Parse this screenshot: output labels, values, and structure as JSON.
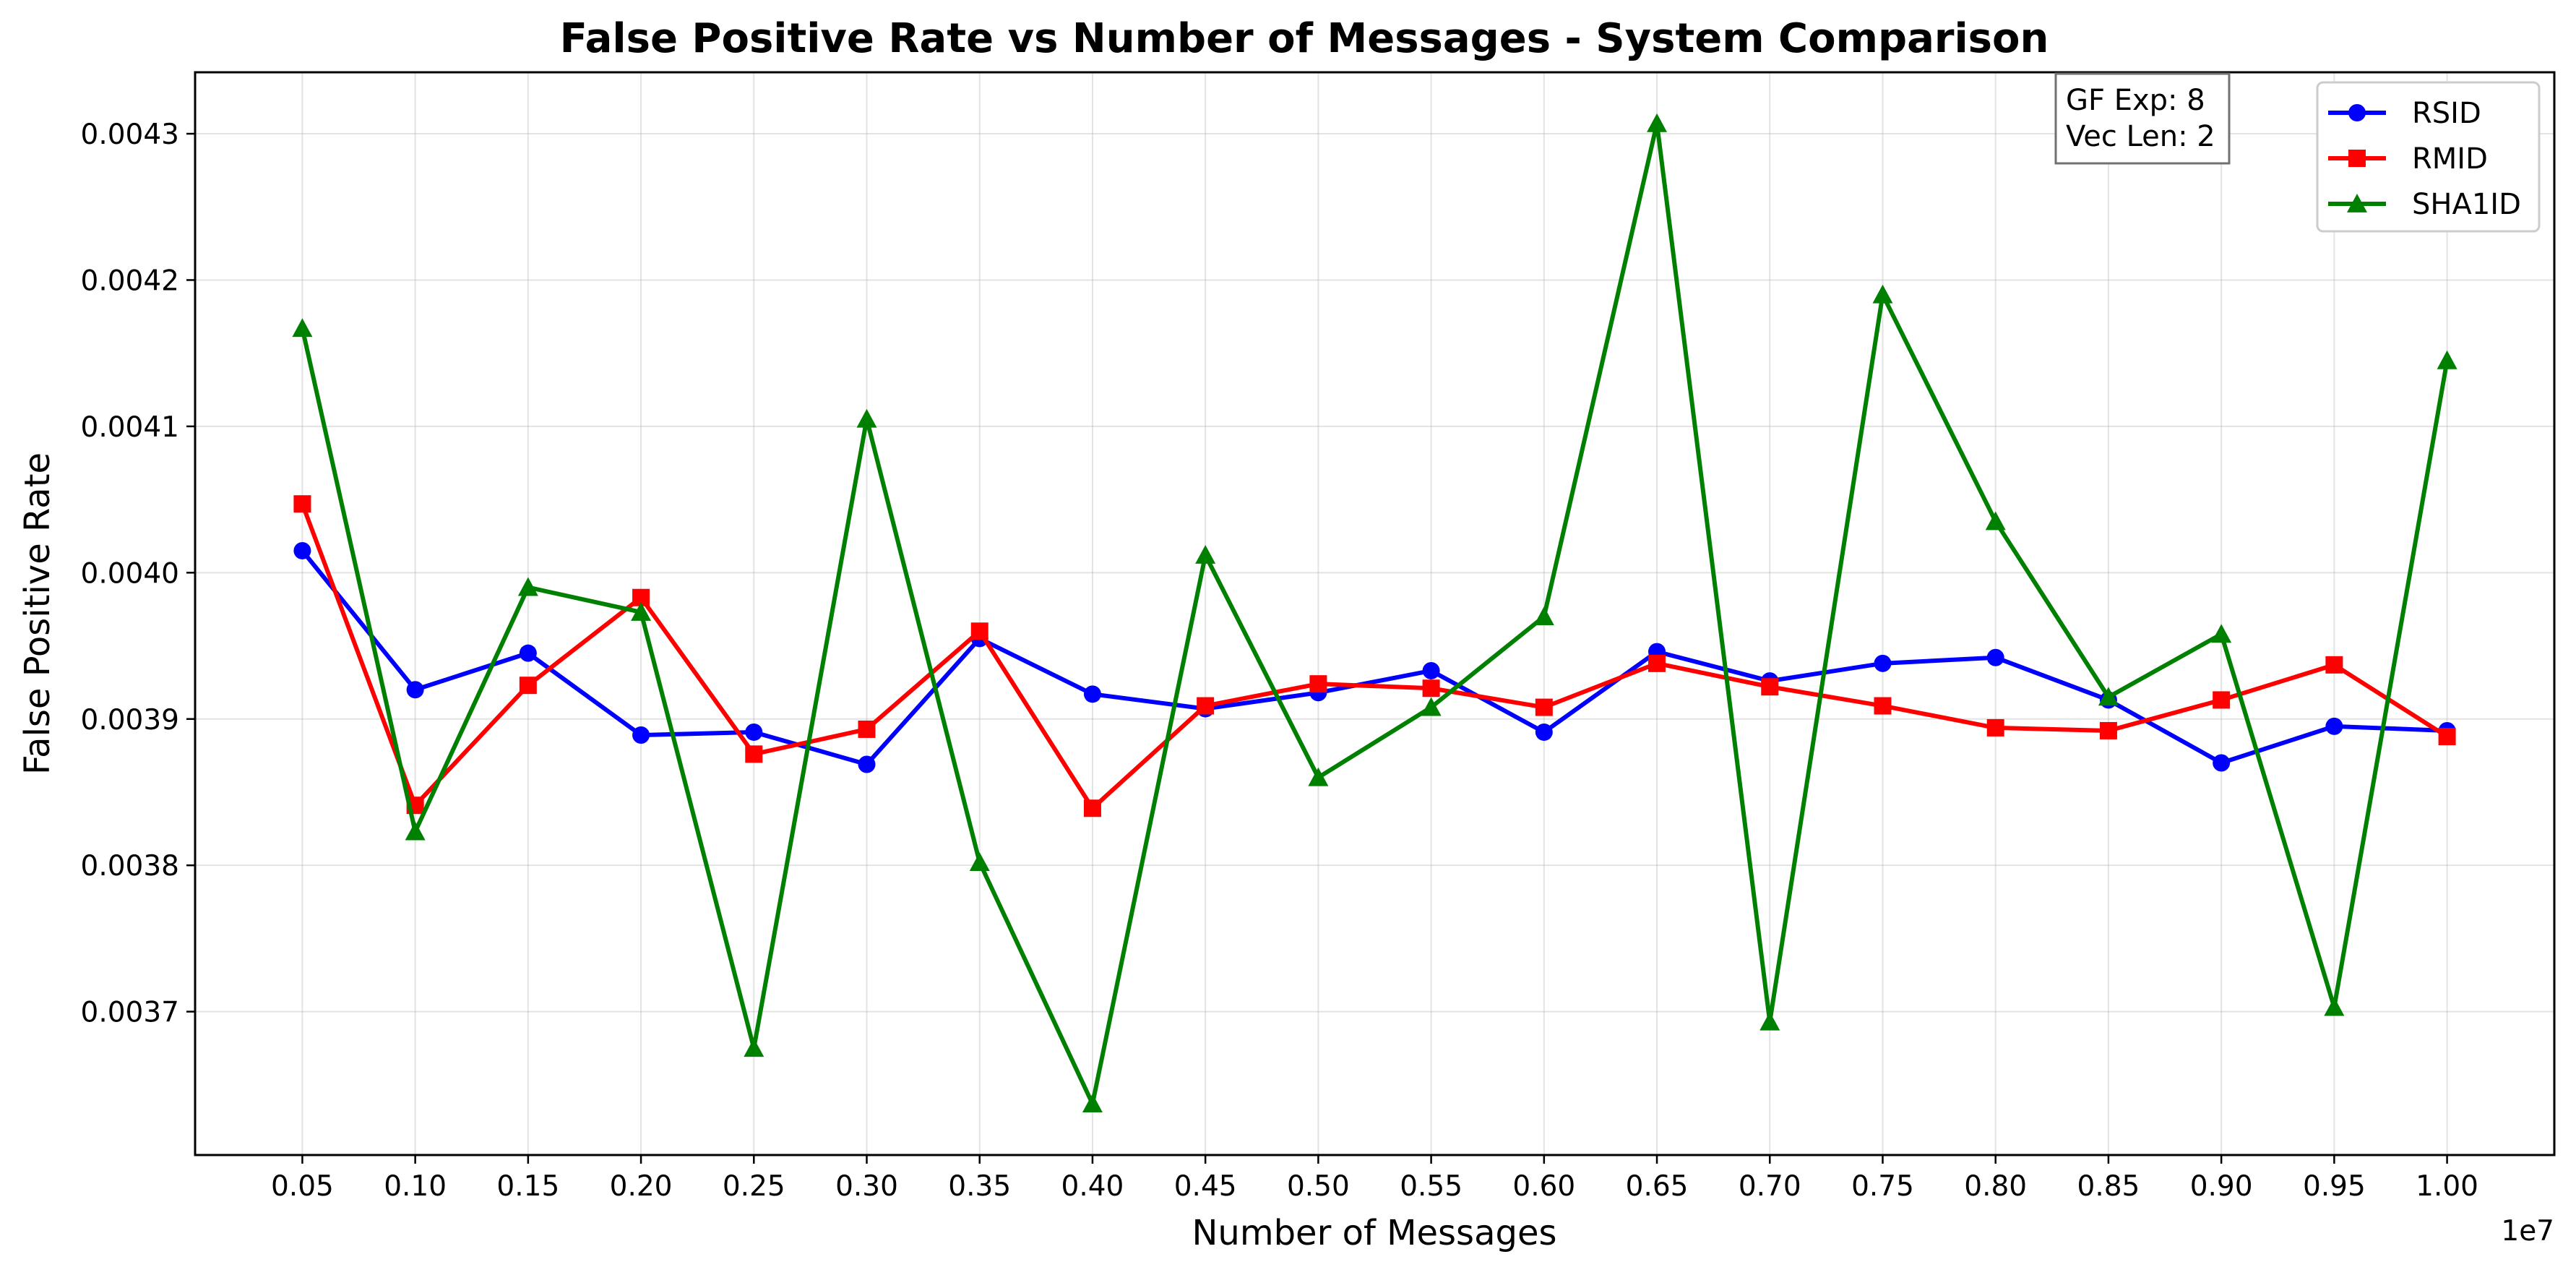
{
  "chart_data": {
    "type": "line",
    "title": "False Positive Rate vs Number of Messages - System Comparison",
    "xlabel": "Number of Messages",
    "ylabel": "False Positive Rate",
    "x_offset_label": "1e7",
    "x_tick_labels": [
      "0.05",
      "0.10",
      "0.15",
      "0.20",
      "0.25",
      "0.30",
      "0.35",
      "0.40",
      "0.45",
      "0.50",
      "0.55",
      "0.60",
      "0.65",
      "0.70",
      "0.75",
      "0.80",
      "0.85",
      "0.90",
      "0.95",
      "1.00"
    ],
    "y_tick_labels": [
      "0.0037",
      "0.0038",
      "0.0039",
      "0.0040",
      "0.0041",
      "0.0042",
      "0.0043"
    ],
    "y_ticks": [
      0.0037,
      0.0038,
      0.0039,
      0.004,
      0.0041,
      0.0042,
      0.0043
    ],
    "x": [
      500000,
      1000000,
      1500000,
      2000000,
      2500000,
      3000000,
      3500000,
      4000000,
      4500000,
      5000000,
      5500000,
      6000000,
      6500000,
      7000000,
      7500000,
      8000000,
      8500000,
      9000000,
      9500000,
      10000000
    ],
    "xlim": [
      25000,
      10475000
    ],
    "ylim": [
      0.003602,
      0.003141
    ],
    "grid": true,
    "legend_position": "top-right",
    "annotation": [
      "GF Exp: 8",
      "Vec Len: 2"
    ],
    "series": [
      {
        "name": "RSID",
        "color": "#0000ff",
        "marker": "circle",
        "values": [
          0.004015,
          0.00392,
          0.003945,
          0.003889,
          0.003891,
          0.003869,
          0.003955,
          0.003917,
          0.003907,
          0.003918,
          0.003933,
          0.003891,
          0.003946,
          0.003926,
          0.003938,
          0.003942,
          0.003913,
          0.00387,
          0.003895,
          0.003892
        ]
      },
      {
        "name": "RMID",
        "color": "#ff0000",
        "marker": "square",
        "values": [
          0.004047,
          0.003841,
          0.003923,
          0.003983,
          0.003876,
          0.003893,
          0.00396,
          0.003839,
          0.003909,
          0.003924,
          0.003921,
          0.003908,
          0.003938,
          0.003922,
          0.003909,
          0.003894,
          0.003892,
          0.003913,
          0.003937,
          0.003888
        ]
      },
      {
        "name": "SHA1ID",
        "color": "#008000",
        "marker": "triangle",
        "values": [
          0.004167,
          0.003823,
          0.00399,
          0.003973,
          0.003675,
          0.004105,
          0.003802,
          0.003637,
          0.004012,
          0.00386,
          0.003908,
          0.00397,
          0.004307,
          0.003693,
          0.00419,
          0.004035,
          0.003915,
          0.003958,
          0.003703,
          0.004145
        ]
      }
    ]
  }
}
